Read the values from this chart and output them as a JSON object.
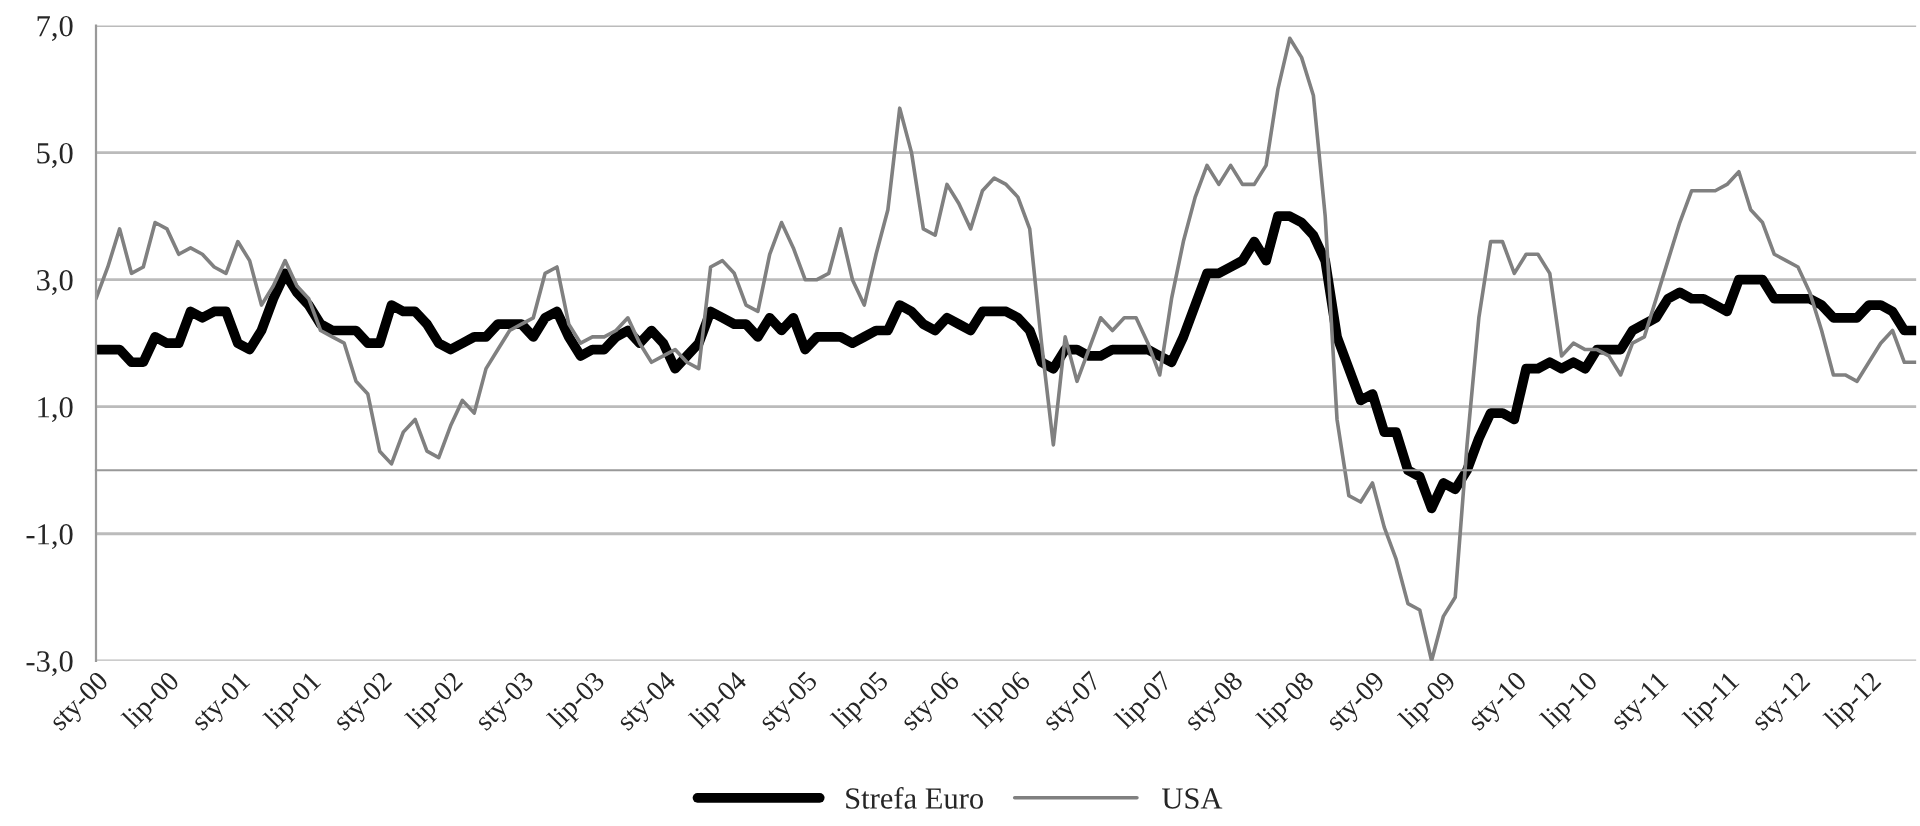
{
  "chart_data": {
    "type": "line",
    "categories": [
      "sty-00",
      null,
      null,
      null,
      null,
      null,
      "lip-00",
      null,
      null,
      null,
      null,
      null,
      "sty-01",
      null,
      null,
      null,
      null,
      null,
      "lip-01",
      null,
      null,
      null,
      null,
      null,
      "sty-02",
      null,
      null,
      null,
      null,
      null,
      "lip-02",
      null,
      null,
      null,
      null,
      null,
      "sty-03",
      null,
      null,
      null,
      null,
      null,
      "lip-03",
      null,
      null,
      null,
      null,
      null,
      "sty-04",
      null,
      null,
      null,
      null,
      null,
      "lip-04",
      null,
      null,
      null,
      null,
      null,
      "sty-05",
      null,
      null,
      null,
      null,
      null,
      "lip-05",
      null,
      null,
      null,
      null,
      null,
      "sty-06",
      null,
      null,
      null,
      null,
      null,
      "lip-06",
      null,
      null,
      null,
      null,
      null,
      "sty-07",
      null,
      null,
      null,
      null,
      null,
      "lip-07",
      null,
      null,
      null,
      null,
      null,
      "sty-08",
      null,
      null,
      null,
      null,
      null,
      "lip-08",
      null,
      null,
      null,
      null,
      null,
      "sty-09",
      null,
      null,
      null,
      null,
      null,
      "lip-09",
      null,
      null,
      null,
      null,
      null,
      "sty-10",
      null,
      null,
      null,
      null,
      null,
      "lip-10",
      null,
      null,
      null,
      null,
      null,
      "sty-11",
      null,
      null,
      null,
      null,
      null,
      "lip-11",
      null,
      null,
      null,
      null,
      null,
      "sty-12",
      null,
      null,
      null,
      null,
      null,
      "lip-12",
      null,
      null,
      null,
      null
    ],
    "series": [
      {
        "name": "Strefa Euro",
        "color": "#000000",
        "values": [
          1.9,
          1.9,
          1.9,
          1.7,
          1.7,
          2.1,
          2.0,
          2.0,
          2.5,
          2.4,
          2.5,
          2.5,
          2.0,
          1.9,
          2.2,
          2.7,
          3.1,
          2.8,
          2.6,
          2.3,
          2.2,
          2.2,
          2.2,
          2.0,
          2.0,
          2.6,
          2.5,
          2.5,
          2.3,
          2.0,
          1.9,
          2.0,
          2.1,
          2.1,
          2.3,
          2.3,
          2.3,
          2.1,
          2.4,
          2.5,
          2.1,
          1.8,
          1.9,
          1.9,
          2.1,
          2.2,
          2.0,
          2.2,
          2.0,
          1.6,
          1.8,
          2.0,
          2.5,
          2.4,
          2.3,
          2.3,
          2.1,
          2.4,
          2.2,
          2.4,
          1.9,
          2.1,
          2.1,
          2.1,
          2.0,
          2.1,
          2.2,
          2.2,
          2.6,
          2.5,
          2.3,
          2.2,
          2.4,
          2.3,
          2.2,
          2.5,
          2.5,
          2.5,
          2.4,
          2.2,
          1.7,
          1.6,
          1.9,
          1.9,
          1.8,
          1.8,
          1.9,
          1.9,
          1.9,
          1.9,
          1.8,
          1.7,
          2.1,
          2.6,
          3.1,
          3.1,
          3.2,
          3.3,
          3.6,
          3.3,
          4.0,
          4.0,
          3.9,
          3.7,
          3.3,
          2.1,
          1.6,
          1.1,
          1.2,
          0.6,
          0.6,
          0.0,
          -0.1,
          -0.6,
          -0.2,
          -0.3,
          0.0,
          0.5,
          0.9,
          0.9,
          0.8,
          1.6,
          1.6,
          1.7,
          1.6,
          1.7,
          1.6,
          1.9,
          1.9,
          1.9,
          2.2,
          2.3,
          2.4,
          2.7,
          2.8,
          2.7,
          2.7,
          2.6,
          2.5,
          3.0,
          3.0,
          3.0,
          2.7,
          2.7,
          2.7,
          2.7,
          2.6,
          2.4,
          2.4,
          2.4,
          2.6,
          2.6,
          2.5,
          2.2,
          2.2
        ]
      },
      {
        "name": "USA",
        "color": "#808080",
        "values": [
          2.7,
          3.2,
          3.8,
          3.1,
          3.2,
          3.9,
          3.8,
          3.4,
          3.5,
          3.4,
          3.2,
          3.1,
          3.6,
          3.3,
          2.6,
          2.9,
          3.3,
          2.9,
          2.7,
          2.2,
          2.1,
          2.0,
          1.4,
          1.2,
          0.3,
          0.1,
          0.6,
          0.8,
          0.3,
          0.2,
          0.7,
          1.1,
          0.9,
          1.6,
          1.9,
          2.2,
          2.3,
          2.4,
          3.1,
          3.2,
          2.3,
          2.0,
          2.1,
          2.1,
          2.2,
          2.4,
          2.0,
          1.7,
          1.8,
          1.9,
          1.7,
          1.6,
          3.2,
          3.3,
          3.1,
          2.6,
          2.5,
          3.4,
          3.9,
          3.5,
          3.0,
          3.0,
          3.1,
          3.8,
          3.0,
          2.6,
          3.4,
          4.1,
          5.7,
          5.0,
          3.8,
          3.7,
          4.5,
          4.2,
          3.8,
          4.4,
          4.6,
          4.5,
          4.3,
          3.8,
          2.0,
          0.4,
          2.1,
          1.4,
          1.9,
          2.4,
          2.2,
          2.4,
          2.4,
          2.0,
          1.5,
          2.7,
          3.6,
          4.3,
          4.8,
          4.5,
          4.8,
          4.5,
          4.5,
          4.8,
          6.0,
          6.8,
          6.5,
          5.9,
          4.0,
          0.8,
          -0.4,
          -0.5,
          -0.2,
          -0.9,
          -1.4,
          -2.1,
          -2.2,
          -3.0,
          -2.3,
          -2.0,
          0.4,
          2.4,
          3.6,
          3.6,
          3.1,
          3.4,
          3.4,
          3.1,
          1.8,
          2.0,
          1.9,
          1.9,
          1.8,
          1.5,
          2.0,
          2.1,
          2.7,
          3.3,
          3.9,
          4.4,
          4.4,
          4.4,
          4.5,
          4.7,
          4.1,
          3.9,
          3.4,
          3.3,
          3.2,
          2.8,
          2.2,
          1.5,
          1.5,
          1.4,
          1.7,
          2.0,
          2.2,
          1.7,
          1.7
        ]
      }
    ],
    "ylim": [
      -3,
      7
    ],
    "yticks": [
      {
        "value": -3,
        "label": "-3,0"
      },
      {
        "value": -1,
        "label": "-1,0"
      },
      {
        "value": 1,
        "label": "1,0"
      },
      {
        "value": 3,
        "label": "3,0"
      },
      {
        "value": 5,
        "label": "5,0"
      },
      {
        "value": 7,
        "label": "7,0"
      }
    ],
    "grid": "y",
    "legend": "bottom",
    "marker": "none",
    "line_style": "solid"
  }
}
